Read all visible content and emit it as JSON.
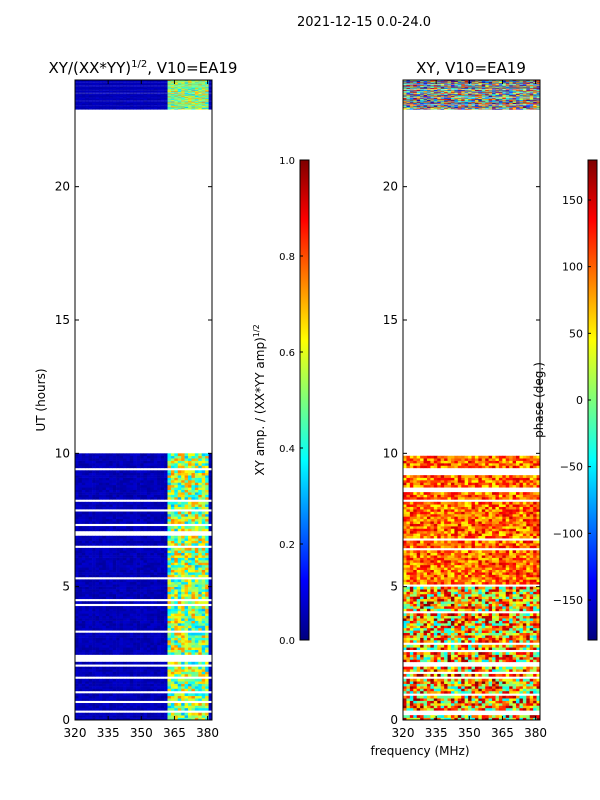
{
  "suptitle": "2021-12-15 0.0-24.0",
  "chart_data": [
    {
      "type": "heatmap",
      "title_main": "XY/(XX*YY)",
      "title_exp": "1/2",
      "title_tail": ", V10=EA19",
      "ylabel": "UT (hours)",
      "xlabel": "",
      "xlim": [
        320,
        382
      ],
      "ylim": [
        0,
        24
      ],
      "xticks": [
        320,
        335,
        350,
        365,
        380
      ],
      "yticks": [
        0,
        5,
        10,
        15,
        20
      ],
      "data_coverage_hours": [
        [
          0.0,
          10.0
        ],
        [
          22.9,
          24.0
        ]
      ],
      "colorbar": {
        "label_main": "XY amp. / (XX*YY amp)",
        "label_exp": "1/2",
        "range": [
          0.0,
          1.0
        ],
        "ticks": [
          "0.0",
          "0.2",
          "0.4",
          "0.6",
          "0.8",
          "1.0"
        ],
        "colormap": "jet"
      }
    },
    {
      "type": "heatmap",
      "title_main": "XY, V10=EA19",
      "ylabel": "",
      "xlabel": "frequency (MHz)",
      "xlim": [
        320,
        382
      ],
      "ylim": [
        0,
        24
      ],
      "xticks": [
        320,
        335,
        350,
        365,
        380
      ],
      "yticks": [
        0,
        5,
        10,
        15,
        20
      ],
      "data_coverage_hours": [
        [
          0.0,
          10.0
        ],
        [
          22.9,
          24.0
        ]
      ],
      "colorbar": {
        "label_main": "phase (deg.)",
        "range": [
          -180,
          180
        ],
        "ticks": [
          "−150",
          "−100",
          "−50",
          "0",
          "50",
          "100",
          "150"
        ],
        "colormap": "jet"
      }
    }
  ]
}
